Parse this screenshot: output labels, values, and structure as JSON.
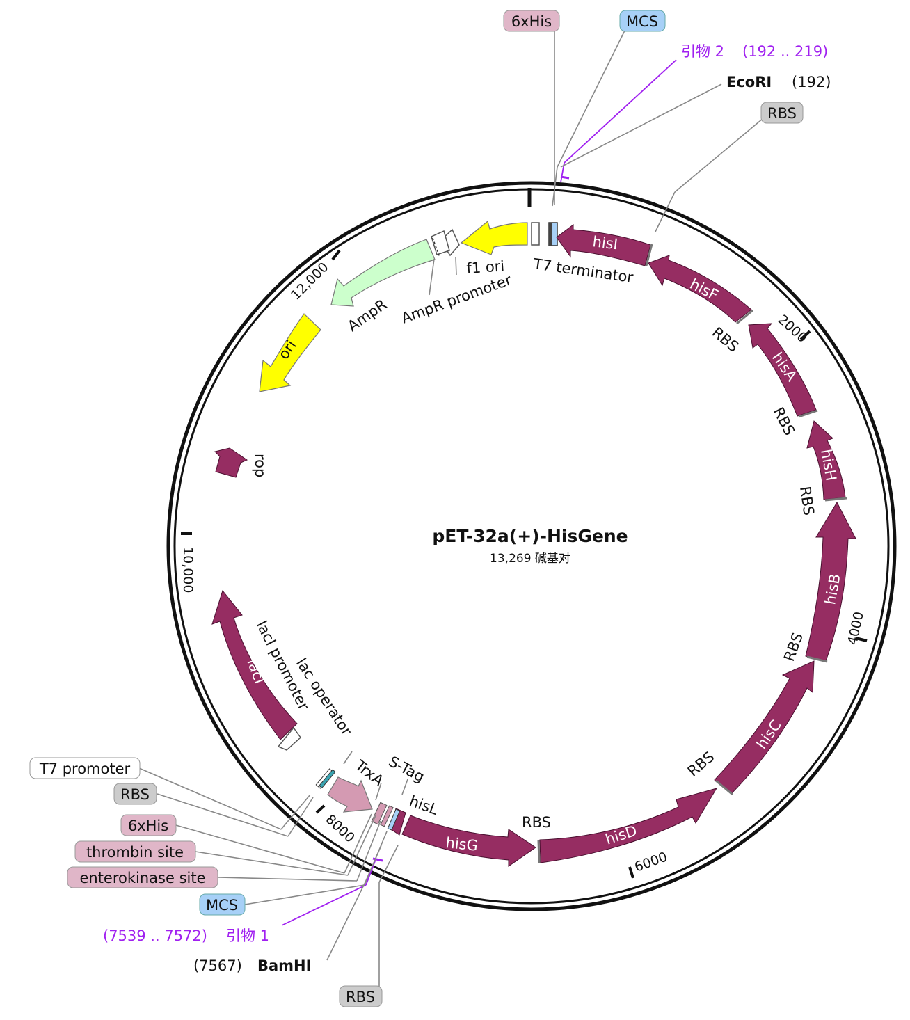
{
  "plasmid": {
    "name": "pET-32a(+)-HisGene",
    "size": "13,269 碱基对",
    "tick_labels": [
      "12,000",
      "2000",
      "4000",
      "6000",
      "8000",
      "10,000"
    ]
  },
  "genes": [
    {
      "name": "hisI",
      "labeled": true
    },
    {
      "name": "hisF",
      "labeled": true
    },
    {
      "name": "hisA",
      "labeled": true
    },
    {
      "name": "hisH",
      "labeled": true
    },
    {
      "name": "hisB",
      "labeled": true
    },
    {
      "name": "hisC",
      "labeled": true
    },
    {
      "name": "hisD",
      "labeled": true
    },
    {
      "name": "hisG",
      "labeled": true
    },
    {
      "name": "lacI",
      "labeled": true
    },
    {
      "name": "ori",
      "labeled": true
    }
  ],
  "feature_labels": {
    "t7_terminator": "T7 terminator",
    "f1_ori": "f1 ori",
    "ampr_promoter": "AmpR promoter",
    "ampr": "AmpR",
    "rop": "rop",
    "laci_promoter": "lacI promoter",
    "lac_operator": "lac operator",
    "trxa": "TrxA",
    "s_tag": "S-Tag",
    "hisl": "hisL",
    "rbs": "RBS"
  },
  "callouts_top": {
    "his6": "6xHis",
    "mcs": "MCS",
    "primer2": "引物 2",
    "primer2_range": "(192 .. 219)",
    "ecori": "EcoRI",
    "ecori_pos": "(192)",
    "rbs": "RBS"
  },
  "callouts_bottom": {
    "t7_promoter": "T7 promoter",
    "rbs": "RBS",
    "his6": "6xHis",
    "thrombin": "thrombin site",
    "enterokinase": "enterokinase site",
    "mcs": "MCS",
    "primer1_range": "(7539 .. 7572)",
    "primer1": "引物 1",
    "bamhi_pos": "(7567)",
    "bamhi": "BamHI",
    "rbs2": "RBS"
  },
  "colors": {
    "gene": "#962d62",
    "ori": "#ffff00",
    "ampr": "#ccffcc",
    "trxa": "#d49ab2",
    "primer": "#a020f0",
    "mcs_bg": "#a7d0f7",
    "his_bg": "#e0b6c8",
    "rbs_bg": "#cccccc"
  }
}
